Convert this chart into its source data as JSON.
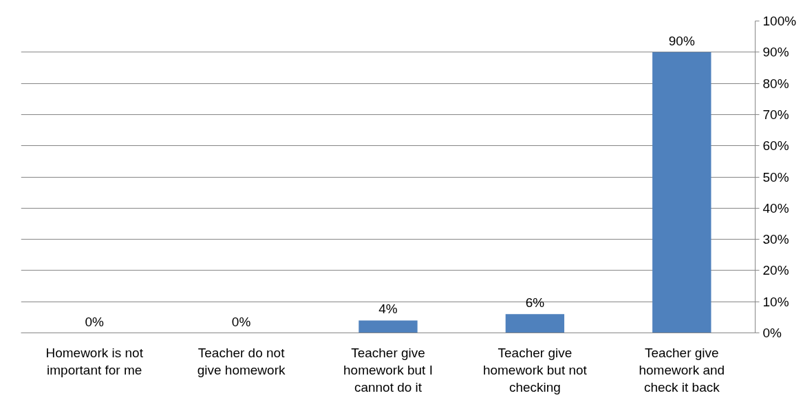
{
  "chart_data": {
    "type": "bar",
    "categories": [
      "Homework is not important for me",
      "Teacher do not give homework",
      "Teacher give homework but I cannot do it",
      "Teacher give homework but not checking",
      "Teacher give homework and check it back"
    ],
    "values": [
      0,
      0,
      4,
      6,
      90
    ],
    "value_labels": [
      "0%",
      "0%",
      "4%",
      "6%",
      "90%"
    ],
    "color": "#4f81bd",
    "ylim": [
      0,
      100
    ],
    "yticks": [
      {
        "value": 0,
        "label": "0%"
      },
      {
        "value": 10,
        "label": "10%"
      },
      {
        "value": 20,
        "label": "20%"
      },
      {
        "value": 30,
        "label": "30%"
      },
      {
        "value": 40,
        "label": "40%"
      },
      {
        "value": 50,
        "label": "50%"
      },
      {
        "value": 60,
        "label": "60%"
      },
      {
        "value": 70,
        "label": "70%"
      },
      {
        "value": 80,
        "label": "80%"
      },
      {
        "value": 90,
        "label": "90%"
      },
      {
        "value": 100,
        "label": "100%"
      }
    ],
    "grid": "y"
  }
}
